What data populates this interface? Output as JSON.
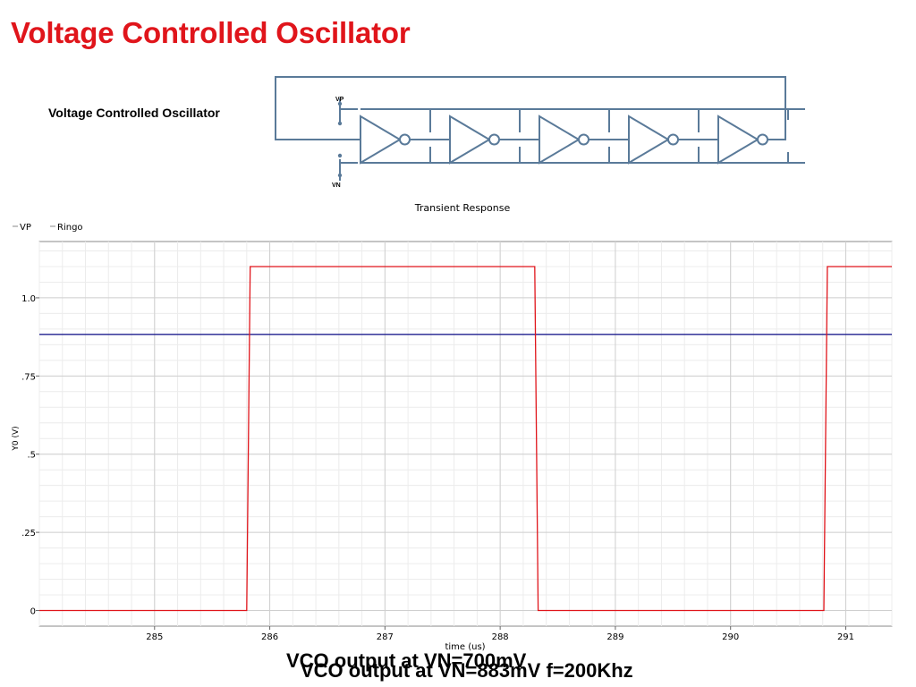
{
  "slide": {
    "title": "Voltage Controlled Oscillator",
    "schematic_label": "Voltage Controlled Oscillator",
    "captions": [
      "VCO output at VN=700mV",
      "VCO output at VN=883mV f=200Khz"
    ]
  },
  "schematic": {
    "pin_top": "VP",
    "pin_bottom": "VN",
    "inverter_count": 5,
    "wire_color": "#5a7a99"
  },
  "chart_data": {
    "type": "line",
    "title": "Transient Response",
    "xlabel": "time (us)",
    "ylabel": "Y0 (V)",
    "xlim": [
      284.0,
      291.4
    ],
    "ylim": [
      -0.05,
      1.18
    ],
    "xticks": [
      285,
      286,
      287,
      288,
      289,
      290,
      291
    ],
    "xtick_labels": [
      "285",
      "286",
      "287",
      "288",
      "289",
      "290",
      "291"
    ],
    "yticks": [
      0,
      0.25,
      0.5,
      0.75,
      1.0
    ],
    "ytick_labels": [
      "0",
      ".25",
      ".5",
      ".75",
      "1.0"
    ],
    "grid": true,
    "legend": "top-left",
    "series": [
      {
        "name": "VP",
        "color": "#1f1f8f",
        "x": [
          284.0,
          291.4
        ],
        "y": [
          0.883,
          0.883
        ]
      },
      {
        "name": "Ringo",
        "color": "#e0151b",
        "x": [
          284.0,
          285.8,
          285.83,
          288.3,
          288.33,
          290.81,
          290.84,
          291.4
        ],
        "y": [
          0.0,
          0.0,
          1.1,
          1.1,
          0.0,
          0.0,
          1.1,
          1.1
        ]
      }
    ]
  }
}
